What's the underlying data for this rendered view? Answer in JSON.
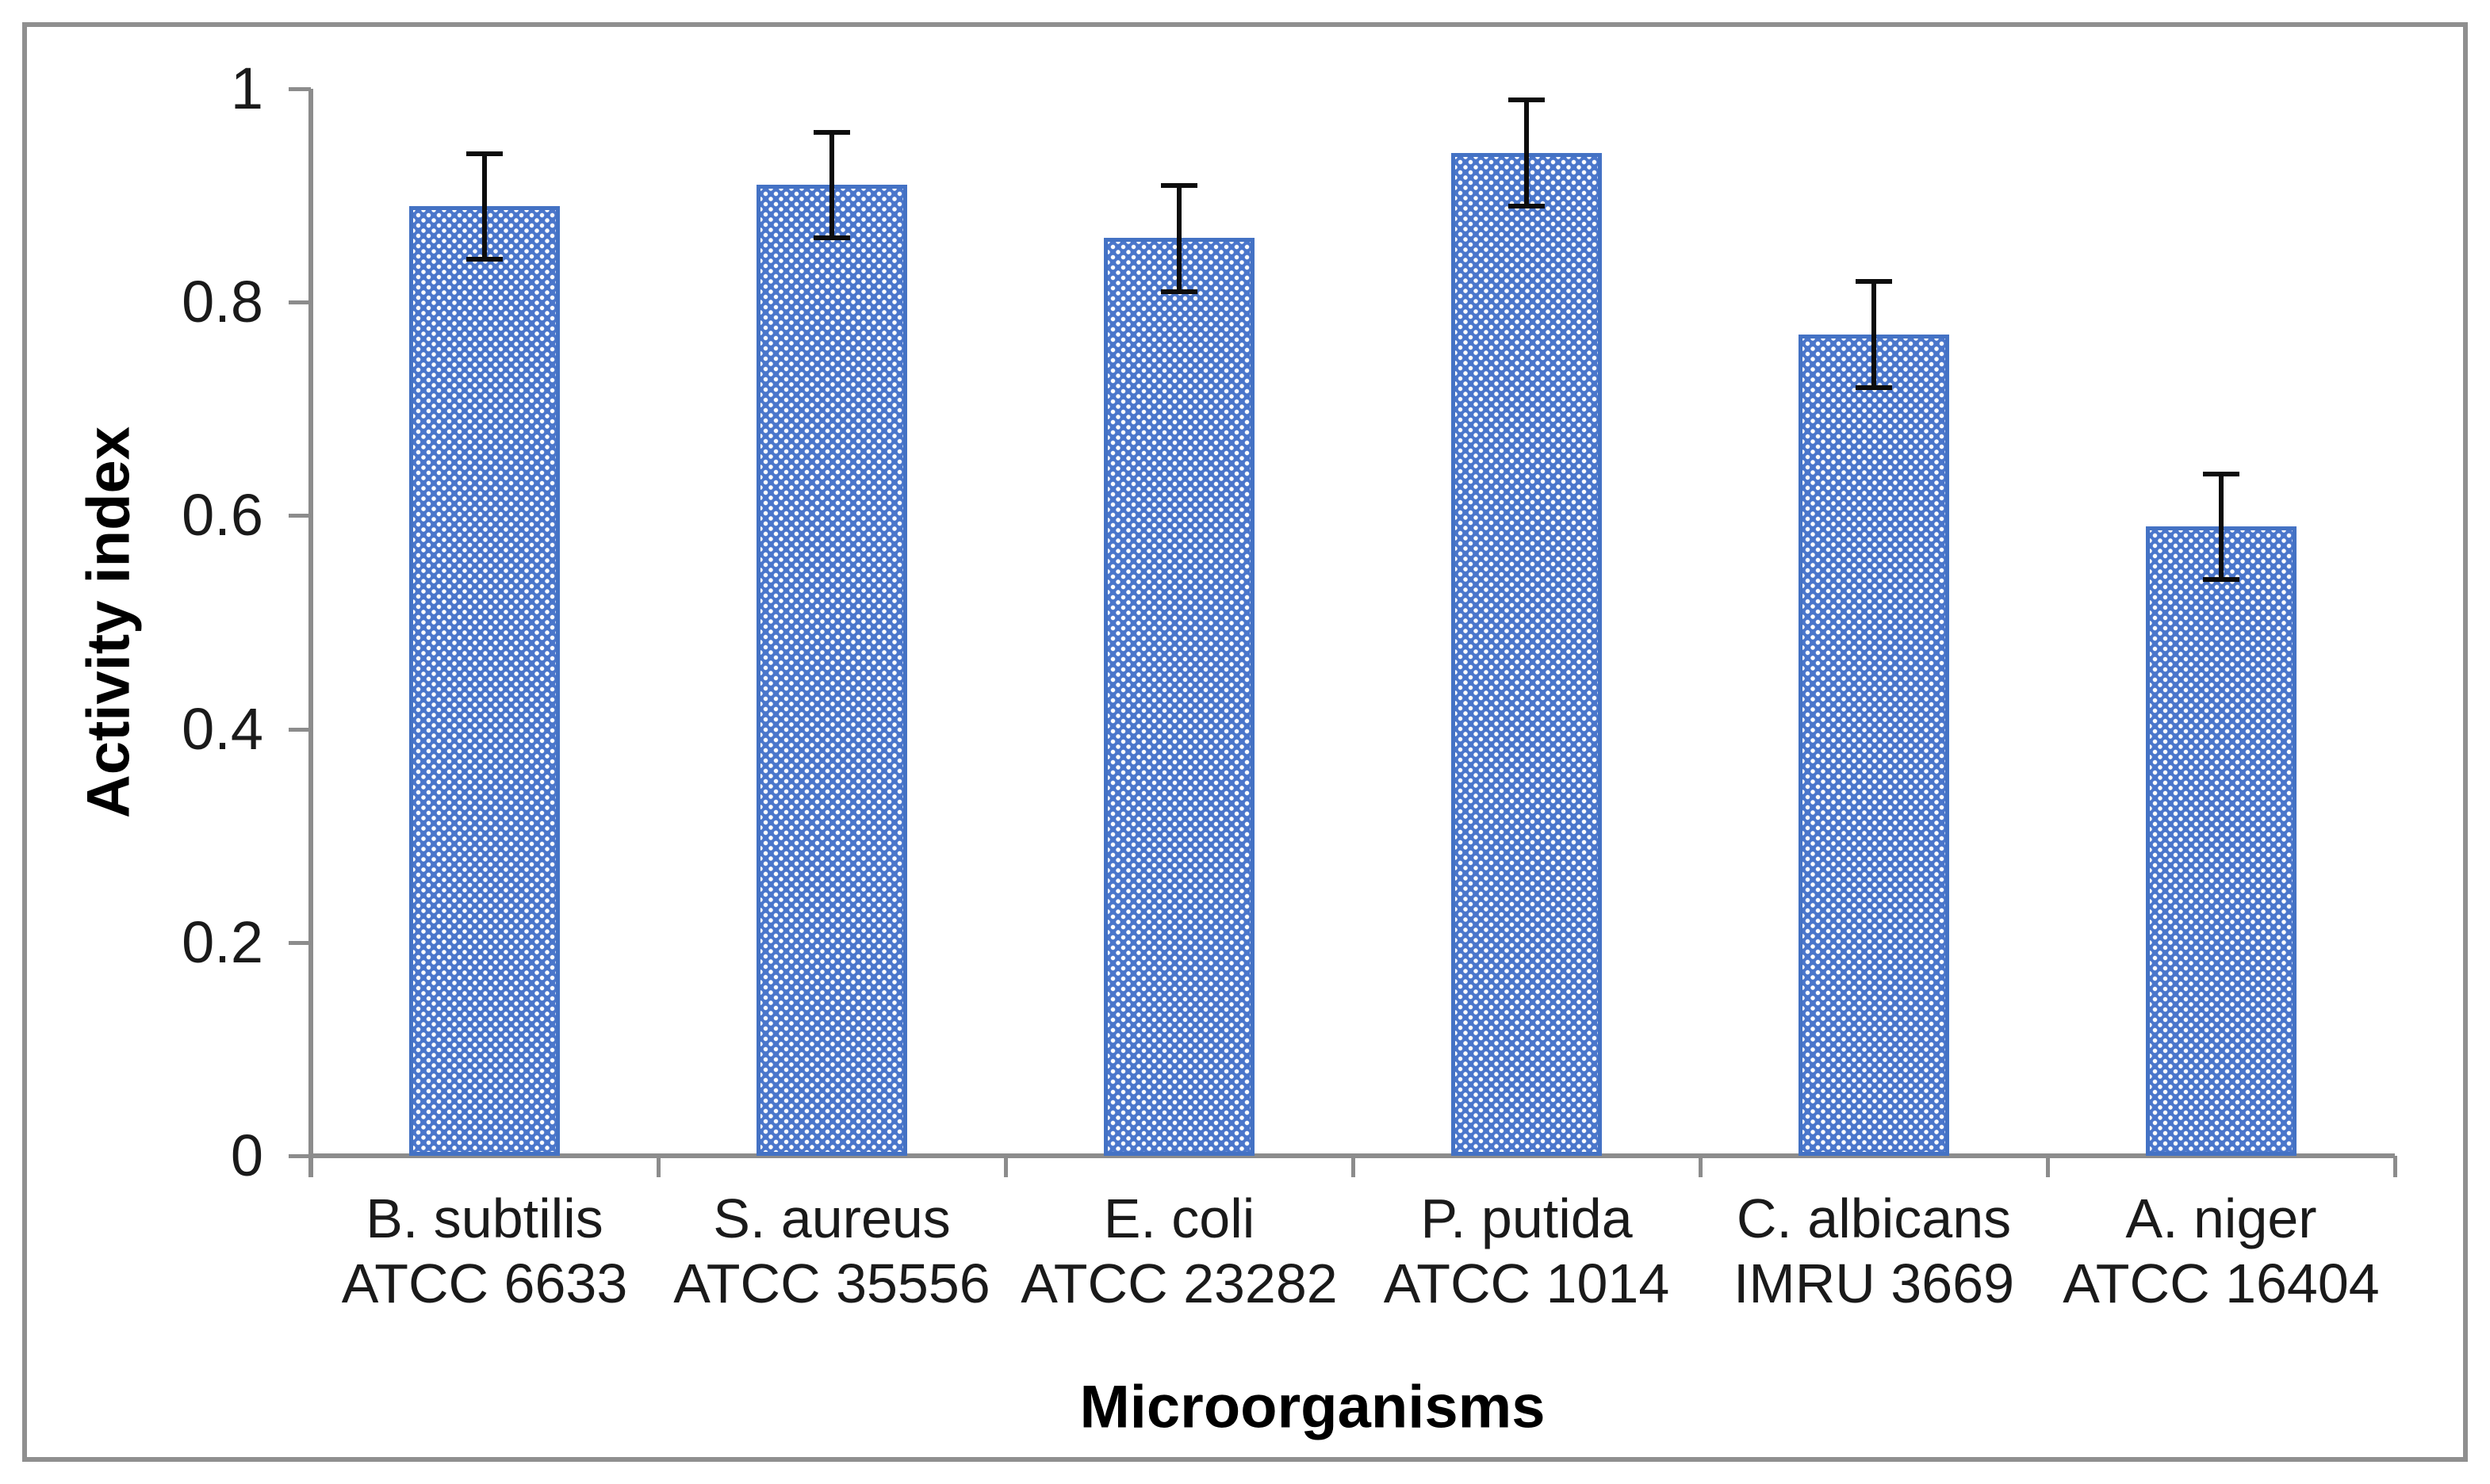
{
  "chart_data": {
    "type": "bar",
    "title": "",
    "xlabel": "Microorganisms",
    "ylabel": "Activity index",
    "ylim": [
      0,
      1
    ],
    "yticks": [
      0,
      0.2,
      0.4,
      0.6,
      0.8,
      1
    ],
    "ytick_labels": [
      "0",
      "0.2",
      "0.4",
      "0.6",
      "0.8",
      "1"
    ],
    "grid": false,
    "legend": null,
    "categories": [
      {
        "line1": "B. subtilis",
        "line2": "ATCC 6633"
      },
      {
        "line1": "S. aureus",
        "line2": "ATCC 35556"
      },
      {
        "line1": "E. coli",
        "line2": "ATCC 23282"
      },
      {
        "line1": "P. putida",
        "line2": "ATCC 1014"
      },
      {
        "line1": "C. albicans",
        "line2": "IMRU 3669"
      },
      {
        "line1": "A. niger",
        "line2": "ATCC 16404"
      }
    ],
    "series": [
      {
        "name": "Activity index",
        "values": [
          0.89,
          0.91,
          0.86,
          0.94,
          0.77,
          0.59
        ],
        "error_bars": [
          0.05,
          0.05,
          0.05,
          0.05,
          0.05,
          0.05
        ]
      }
    ],
    "bar_style": "blue dotted-diamond pattern fill with solid blue outline, black error bars",
    "colors": {
      "bar_fill": "#4a76cb",
      "bar_pattern_dots": "#ffffff",
      "bar_border": "#4472c4",
      "axis": "#8c8c8c",
      "frame_border": "#8f8f8f",
      "error_bar": "#0d0d0d",
      "text": "#1a1a1a",
      "background": "#ffffff"
    }
  }
}
